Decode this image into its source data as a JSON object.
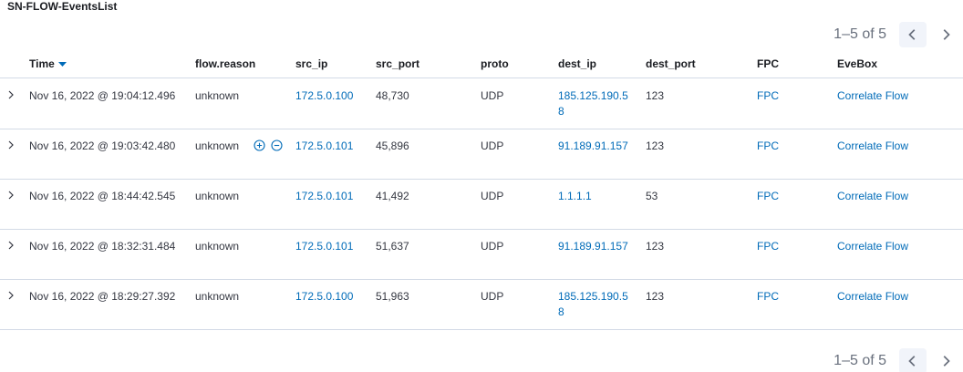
{
  "panel": {
    "title": "SN-FLOW-EventsList"
  },
  "pagination": {
    "text": "1–5 of 5"
  },
  "columns": {
    "time": "Time",
    "reason": "flow.reason",
    "src_ip": "src_ip",
    "src_port": "src_port",
    "proto": "proto",
    "dest_ip": "dest_ip",
    "dest_port": "dest_port",
    "fpc": "FPC",
    "evebox": "EveBox"
  },
  "rows": [
    {
      "time": "Nov 16, 2022 @ 19:04:12.496",
      "reason": "unknown",
      "src_ip": "172.5.0.100",
      "src_port": "48,730",
      "proto": "UDP",
      "dest_ip": "185.125.190.58",
      "dest_port": "123",
      "fpc": "FPC",
      "evebox": "Correlate Flow"
    },
    {
      "time": "Nov 16, 2022 @ 19:03:42.480",
      "reason": "unknown",
      "src_ip": "172.5.0.101",
      "src_port": "45,896",
      "proto": "UDP",
      "dest_ip": "91.189.91.157",
      "dest_port": "123",
      "fpc": "FPC",
      "evebox": "Correlate Flow"
    },
    {
      "time": "Nov 16, 2022 @ 18:44:42.545",
      "reason": "unknown",
      "src_ip": "172.5.0.101",
      "src_port": "41,492",
      "proto": "UDP",
      "dest_ip": "1.1.1.1",
      "dest_port": "53",
      "fpc": "FPC",
      "evebox": "Correlate Flow"
    },
    {
      "time": "Nov 16, 2022 @ 18:32:31.484",
      "reason": "unknown",
      "src_ip": "172.5.0.101",
      "src_port": "51,637",
      "proto": "UDP",
      "dest_ip": "91.189.91.157",
      "dest_port": "123",
      "fpc": "FPC",
      "evebox": "Correlate Flow"
    },
    {
      "time": "Nov 16, 2022 @ 18:29:27.392",
      "reason": "unknown",
      "src_ip": "172.5.0.100",
      "src_port": "51,963",
      "proto": "UDP",
      "dest_ip": "185.125.190.58",
      "dest_port": "123",
      "fpc": "FPC",
      "evebox": "Correlate Flow"
    }
  ],
  "colors": {
    "link": "#006bb8",
    "text": "#343741",
    "border": "#d3dae6"
  },
  "icons": {
    "expand": "chevron-right-icon",
    "sort": "sort-down-icon",
    "filter_in": "magnify-plus-icon",
    "filter_out": "magnify-minus-icon",
    "prev": "arrow-left-icon",
    "next": "arrow-right-icon"
  }
}
